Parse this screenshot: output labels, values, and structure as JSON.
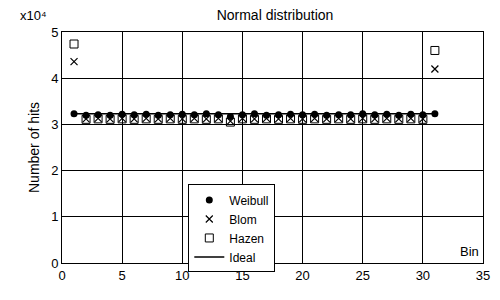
{
  "chart_data": {
    "type": "scatter",
    "title": "Normal distribution",
    "y_label": "Number of hits",
    "annotations": [
      "x10⁴",
      "Bin"
    ],
    "x": [
      1,
      2,
      3,
      4,
      5,
      6,
      7,
      8,
      9,
      10,
      11,
      12,
      13,
      14,
      15,
      16,
      17,
      18,
      19,
      20,
      21,
      22,
      23,
      24,
      25,
      26,
      27,
      28,
      29,
      30,
      31
    ],
    "series": [
      {
        "name": "Weibull",
        "color": "#000000",
        "marker": "circle",
        "type": "scatter",
        "values": [
          3.23,
          3.2,
          3.21,
          3.2,
          3.22,
          3.21,
          3.22,
          3.2,
          3.21,
          3.22,
          3.21,
          3.23,
          3.21,
          3.17,
          3.21,
          3.23,
          3.2,
          3.21,
          3.22,
          3.21,
          3.22,
          3.2,
          3.21,
          3.21,
          3.23,
          3.21,
          3.22,
          3.2,
          3.22,
          3.21,
          3.23
        ]
      },
      {
        "name": "Blom",
        "color": "#000000",
        "marker": "x",
        "type": "scatter",
        "values": [
          4.36,
          3.12,
          3.13,
          3.12,
          3.13,
          3.12,
          3.13,
          3.12,
          3.13,
          3.12,
          3.13,
          3.12,
          3.13,
          3.07,
          3.13,
          3.12,
          3.13,
          3.12,
          3.13,
          3.12,
          3.13,
          3.12,
          3.13,
          3.12,
          3.13,
          3.12,
          3.13,
          3.12,
          3.13,
          3.12,
          4.2
        ]
      },
      {
        "name": "Hazen",
        "color": "#000000",
        "marker": "square-open",
        "type": "scatter",
        "values": [
          4.74,
          3.11,
          3.12,
          3.11,
          3.12,
          3.11,
          3.12,
          3.11,
          3.12,
          3.11,
          3.12,
          3.11,
          3.12,
          3.05,
          3.12,
          3.11,
          3.12,
          3.11,
          3.12,
          3.11,
          3.12,
          3.11,
          3.12,
          3.11,
          3.12,
          3.11,
          3.12,
          3.11,
          3.12,
          3.11,
          4.6
        ]
      },
      {
        "name": "Ideal",
        "color": "#000000",
        "line_style": "solid",
        "type": "line",
        "values": [
          3.23,
          3.23,
          3.23,
          3.23,
          3.23,
          3.23,
          3.23,
          3.23,
          3.23,
          3.23,
          3.23,
          3.23,
          3.23,
          3.23,
          3.23,
          3.23,
          3.23,
          3.23,
          3.23,
          3.23,
          3.23,
          3.23,
          3.23,
          3.23,
          3.23,
          3.23,
          3.23,
          3.23,
          3.23,
          3.23,
          3.23
        ]
      }
    ],
    "xlim": [
      0,
      35
    ],
    "xticks": [
      0,
      5,
      10,
      15,
      20,
      25,
      30,
      35
    ],
    "ylim": [
      0,
      5
    ],
    "yticks": [
      0,
      1,
      2,
      3,
      4,
      5
    ],
    "grid": true,
    "legend": "bottom-center"
  }
}
